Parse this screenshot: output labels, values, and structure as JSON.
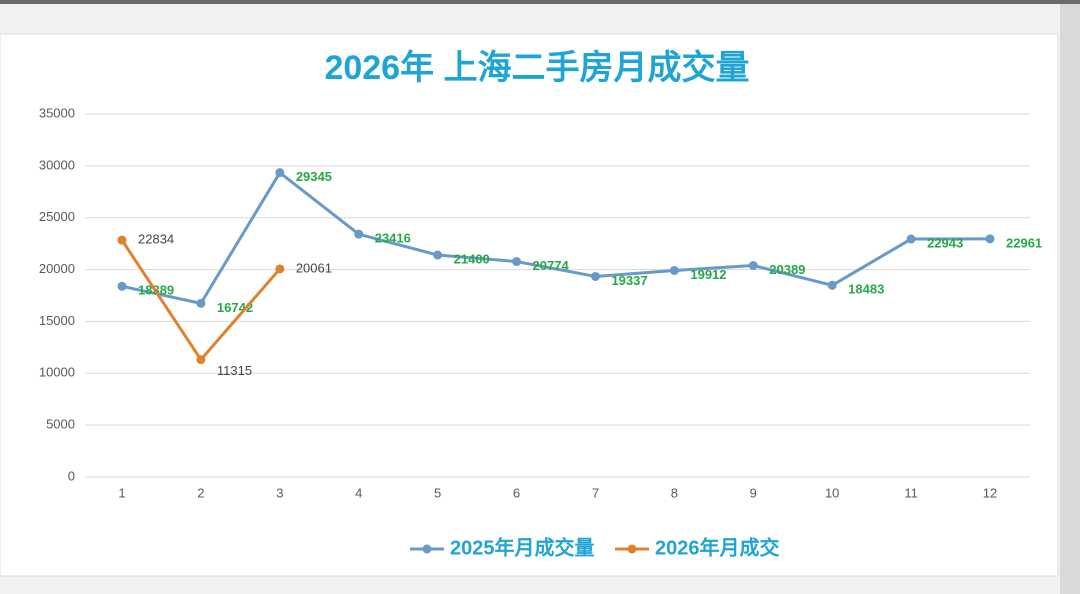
{
  "chart_data": {
    "type": "line",
    "title": "2026年 上海二手房月成交量",
    "categories": [
      "1",
      "2",
      "3",
      "4",
      "5",
      "6",
      "7",
      "8",
      "9",
      "10",
      "11",
      "12"
    ],
    "series": [
      {
        "name": "2025年月成交量",
        "color": "#6799c9",
        "label_color": "#27a847",
        "values": [
          18389,
          16742,
          29345,
          23416,
          21400,
          20774,
          19337,
          19912,
          20389,
          18483,
          22943,
          22961
        ]
      },
      {
        "name": "2026年月成交",
        "color": "#e0812f",
        "label_color": "#444444",
        "values": [
          22834,
          11315,
          20061,
          null,
          null,
          null,
          null,
          null,
          null,
          null,
          null,
          null
        ]
      }
    ],
    "ylim": [
      0,
      35000
    ],
    "yticks": [
      0,
      5000,
      10000,
      15000,
      20000,
      25000,
      30000,
      35000
    ],
    "grid": true,
    "legend": "bottom"
  }
}
